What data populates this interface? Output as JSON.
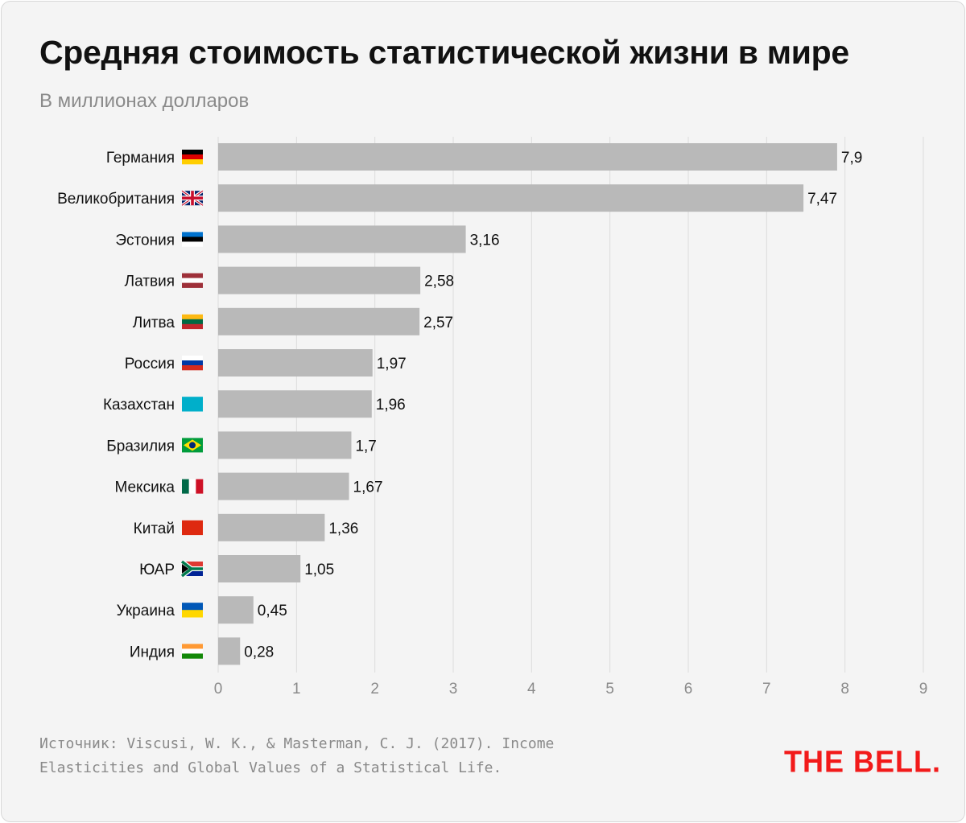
{
  "title": "Средняя стоимость статистической жизни в мире",
  "subtitle": "В миллионах долларов",
  "source": "Источник: Viscusi, W. K., & Masterman, C. J. (2017). Income Elasticities and Global Values of a Statistical Life.",
  "logo": "THE BELL.",
  "colors": {
    "bar": "#b9b9b9",
    "grid": "#dcdcdc",
    "logo": "#f21a1a",
    "background": "#f4f4f4"
  },
  "chart_data": {
    "type": "bar",
    "orientation": "horizontal",
    "categories": [
      "Германия",
      "Великобритания",
      "Эстония",
      "Латвия",
      "Литва",
      "Россия",
      "Казахстан",
      "Бразилия",
      "Мексика",
      "Китай",
      "ЮАР",
      "Украина",
      "Индия"
    ],
    "values": [
      7.9,
      7.47,
      3.16,
      2.58,
      2.57,
      1.97,
      1.96,
      1.7,
      1.67,
      1.36,
      1.05,
      0.45,
      0.28
    ],
    "value_labels": [
      "7,9",
      "7,47",
      "3,16",
      "2,58",
      "2,57",
      "1,97",
      "1,96",
      "1,7",
      "1,67",
      "1,36",
      "1,05",
      "0,45",
      "0,28"
    ],
    "flags": [
      {
        "type": "h",
        "colors": [
          "#000000",
          "#dd0000",
          "#ffce00"
        ]
      },
      {
        "type": "uk",
        "colors": [
          "#012169",
          "#ffffff",
          "#c8102e"
        ]
      },
      {
        "type": "h",
        "colors": [
          "#0072ce",
          "#000000",
          "#ffffff"
        ]
      },
      {
        "type": "h",
        "colors": [
          "#9e3039",
          "#ffffff",
          "#9e3039"
        ]
      },
      {
        "type": "h",
        "colors": [
          "#fdb913",
          "#006a44",
          "#c1272d"
        ]
      },
      {
        "type": "h",
        "colors": [
          "#ffffff",
          "#0039a6",
          "#d52b1e"
        ]
      },
      {
        "type": "h",
        "colors": [
          "#00afca"
        ]
      },
      {
        "type": "br",
        "colors": [
          "#009c3b",
          "#ffdf00",
          "#002776"
        ]
      },
      {
        "type": "v",
        "colors": [
          "#006847",
          "#ffffff",
          "#ce1126"
        ]
      },
      {
        "type": "h",
        "colors": [
          "#de2910"
        ]
      },
      {
        "type": "za",
        "colors": [
          "#007a4d",
          "#ffffff",
          "#ffb612",
          "#000000",
          "#de3831",
          "#002395"
        ]
      },
      {
        "type": "h",
        "colors": [
          "#0057b7",
          "#ffd700"
        ]
      },
      {
        "type": "h",
        "colors": [
          "#ff9933",
          "#ffffff",
          "#138808"
        ]
      }
    ],
    "xlim": [
      0,
      9
    ],
    "xticks": [
      0,
      1,
      2,
      3,
      4,
      5,
      6,
      7,
      8,
      9
    ],
    "grid": true
  }
}
